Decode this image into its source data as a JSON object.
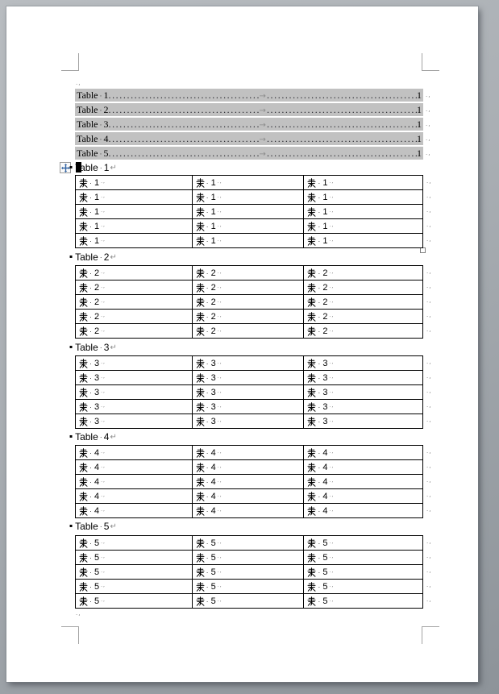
{
  "app": "word-document-canvas",
  "toc": {
    "entries": [
      {
        "prefix": "Table",
        "num": "1",
        "page": "1"
      },
      {
        "prefix": "Table",
        "num": "2",
        "page": "1"
      },
      {
        "prefix": "Table",
        "num": "3",
        "page": "1"
      },
      {
        "prefix": "Table",
        "num": "4",
        "page": "1"
      },
      {
        "prefix": "Table",
        "num": "5",
        "page": "1"
      }
    ]
  },
  "tables": [
    {
      "caption_prefix": "Table",
      "caption_num": "1",
      "cell_glyph": "表",
      "cell_num": "1",
      "rows": 5,
      "cols": 3
    },
    {
      "caption_prefix": "Table",
      "caption_num": "2",
      "cell_glyph": "表",
      "cell_num": "2",
      "rows": 5,
      "cols": 3
    },
    {
      "caption_prefix": "Table",
      "caption_num": "3",
      "cell_glyph": "表",
      "cell_num": "3",
      "rows": 5,
      "cols": 3
    },
    {
      "caption_prefix": "Table",
      "caption_num": "4",
      "cell_glyph": "表",
      "cell_num": "4",
      "rows": 5,
      "cols": 3
    },
    {
      "caption_prefix": "Table",
      "caption_num": "5",
      "cell_glyph": "表",
      "cell_num": "5",
      "rows": 5,
      "cols": 3
    }
  ],
  "marks": {
    "space": "·",
    "paragraph": "↵",
    "tab_arrow": "→",
    "bullet": "▪",
    "cell_end": ".,",
    "row_end": ".,",
    "empty_paragraph": ".,",
    "leader_dots": "........................................................................................................................................"
  },
  "colors": {
    "field_shading": "#c1c1c1",
    "page": "#ffffff",
    "background": "#a9aeb3",
    "table_border": "#000000",
    "crop_mark": "#a3a3a3",
    "move_handle_accent": "#3465a4",
    "formatting_mark_gray": "#8a8a8a"
  }
}
